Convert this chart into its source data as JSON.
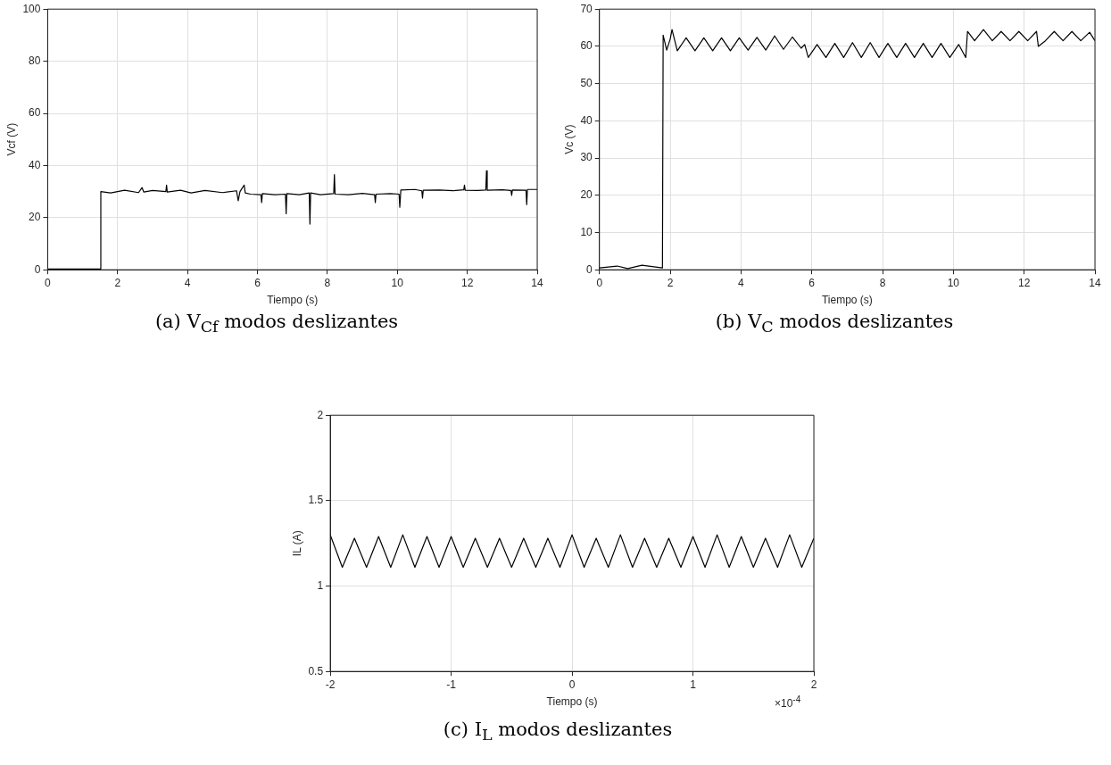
{
  "chart_data": [
    {
      "type": "line",
      "title": "(a) V$_{Cf}$ modos deslizantes",
      "xlabel": "Tiempo (s)",
      "ylabel": "Vcf (V)",
      "xlim": [
        0,
        14
      ],
      "ylim": [
        0,
        100
      ],
      "xticks": [
        0,
        2,
        4,
        6,
        8,
        10,
        12,
        14
      ],
      "yticks": [
        0,
        20,
        40,
        60,
        80,
        100
      ],
      "grid": true,
      "series": [
        {
          "color": "#000000",
          "x": [
            0,
            1.5,
            1.52,
            1.8,
            2.2,
            2.6,
            2.7,
            2.75,
            3.0,
            3.38,
            3.4,
            3.42,
            3.8,
            4.1,
            4.5,
            5.0,
            5.4,
            5.45,
            5.5,
            5.62,
            5.65,
            5.8,
            6.1,
            6.12,
            6.14,
            6.5,
            6.8,
            6.82,
            6.84,
            7.2,
            7.48,
            7.5,
            7.52,
            7.8,
            8.18,
            8.2,
            8.22,
            8.6,
            9.0,
            9.35,
            9.37,
            9.39,
            9.8,
            10.05,
            10.07,
            10.1,
            10.5,
            10.7,
            10.72,
            10.74,
            11.2,
            11.6,
            11.9,
            11.92,
            11.94,
            12.3,
            12.53,
            12.55,
            12.57,
            13.0,
            13.25,
            13.27,
            13.29,
            13.68,
            13.7,
            13.72,
            14
          ],
          "values": [
            0.3,
            0.3,
            30,
            29.5,
            30.5,
            29.6,
            31.5,
            29.8,
            30.4,
            30,
            32.5,
            29.8,
            30.5,
            29.5,
            30.4,
            29.6,
            30.3,
            26.5,
            30,
            32.5,
            29.5,
            29,
            28.8,
            25.8,
            29.2,
            28.8,
            29,
            21.5,
            29.2,
            28.8,
            29.5,
            17.5,
            29.5,
            28.8,
            29.2,
            36.5,
            29,
            28.8,
            29.3,
            28.8,
            25.8,
            29,
            29.2,
            29,
            24,
            30.6,
            30.8,
            30.3,
            27.5,
            30.5,
            30.6,
            30.3,
            30.7,
            32.5,
            30.5,
            30.4,
            30.6,
            38,
            30.5,
            30.7,
            30.4,
            28.5,
            30.6,
            30.5,
            25,
            30.8,
            30.8
          ]
        }
      ]
    },
    {
      "type": "line",
      "title": "(b) V$_{C}$ modos deslizantes",
      "xlabel": "Tiempo (s)",
      "ylabel": "Vc (V)",
      "xlim": [
        0,
        14
      ],
      "ylim": [
        0,
        70
      ],
      "xticks": [
        0,
        2,
        4,
        6,
        8,
        10,
        12,
        14
      ],
      "yticks": [
        0,
        10,
        20,
        30,
        40,
        50,
        60,
        70
      ],
      "grid": true,
      "series": [
        {
          "color": "#000000",
          "x": [
            0,
            0.5,
            0.8,
            1.2,
            1.78,
            1.8,
            1.9,
            2.0,
            2.05,
            2.2,
            2.45,
            2.7,
            2.95,
            3.2,
            3.45,
            3.7,
            3.95,
            4.2,
            4.45,
            4.7,
            4.95,
            5.2,
            5.45,
            5.7,
            5.8,
            5.9,
            6.15,
            6.4,
            6.65,
            6.9,
            7.15,
            7.4,
            7.65,
            7.9,
            8.15,
            8.4,
            8.65,
            8.9,
            9.15,
            9.4,
            9.65,
            9.9,
            10.15,
            10.35,
            10.4,
            10.6,
            10.85,
            11.1,
            11.35,
            11.6,
            11.85,
            12.1,
            12.35,
            12.4,
            12.6,
            12.85,
            13.1,
            13.35,
            13.6,
            13.85,
            14
          ],
          "values": [
            0.5,
            1,
            0.3,
            1.2,
            0.5,
            63,
            59,
            62,
            64.5,
            58.8,
            62.3,
            58.8,
            62.3,
            58.8,
            62.3,
            58.8,
            62.3,
            59,
            62.4,
            59,
            62.8,
            59.2,
            62.5,
            59.5,
            60.5,
            57,
            60.5,
            57,
            60.8,
            57,
            61,
            57,
            61,
            57,
            60.8,
            57,
            60.8,
            57,
            60.8,
            57,
            60.8,
            57,
            60.5,
            57,
            64,
            61.5,
            64.5,
            61.5,
            64,
            61.5,
            64,
            61.5,
            64,
            60,
            61.5,
            64,
            61.5,
            64,
            61.5,
            63.8,
            61.5
          ]
        }
      ]
    },
    {
      "type": "line",
      "title": "(c) I$_{L}$ modos deslizantes",
      "xlabel": "Tiempo (s)",
      "ylabel": "IL (A)",
      "annotations": [
        "×10$^{-4}$"
      ],
      "xlim": [
        -2,
        2
      ],
      "ylim": [
        0.5,
        2
      ],
      "xticks": [
        -2,
        -1,
        0,
        1,
        2
      ],
      "yticks": [
        0.5,
        1,
        1.5,
        2
      ],
      "grid": true,
      "series": [
        {
          "color": "#000000",
          "x": [
            -2,
            -1.9,
            -1.8,
            -1.7,
            -1.6,
            -1.5,
            -1.4,
            -1.3,
            -1.2,
            -1.1,
            -1,
            -0.9,
            -0.8,
            -0.7,
            -0.6,
            -0.5,
            -0.4,
            -0.3,
            -0.2,
            -0.1,
            0,
            0.1,
            0.2,
            0.3,
            0.4,
            0.5,
            0.6,
            0.7,
            0.8,
            0.9,
            1,
            1.1,
            1.2,
            1.3,
            1.4,
            1.5,
            1.6,
            1.7,
            1.8,
            1.9,
            2
          ],
          "values": [
            1.3,
            1.11,
            1.28,
            1.11,
            1.29,
            1.11,
            1.3,
            1.11,
            1.29,
            1.11,
            1.29,
            1.11,
            1.28,
            1.11,
            1.28,
            1.11,
            1.28,
            1.11,
            1.28,
            1.11,
            1.3,
            1.11,
            1.28,
            1.11,
            1.3,
            1.11,
            1.28,
            1.11,
            1.28,
            1.11,
            1.29,
            1.11,
            1.3,
            1.11,
            1.29,
            1.11,
            1.28,
            1.11,
            1.3,
            1.11,
            1.28
          ]
        }
      ]
    }
  ]
}
